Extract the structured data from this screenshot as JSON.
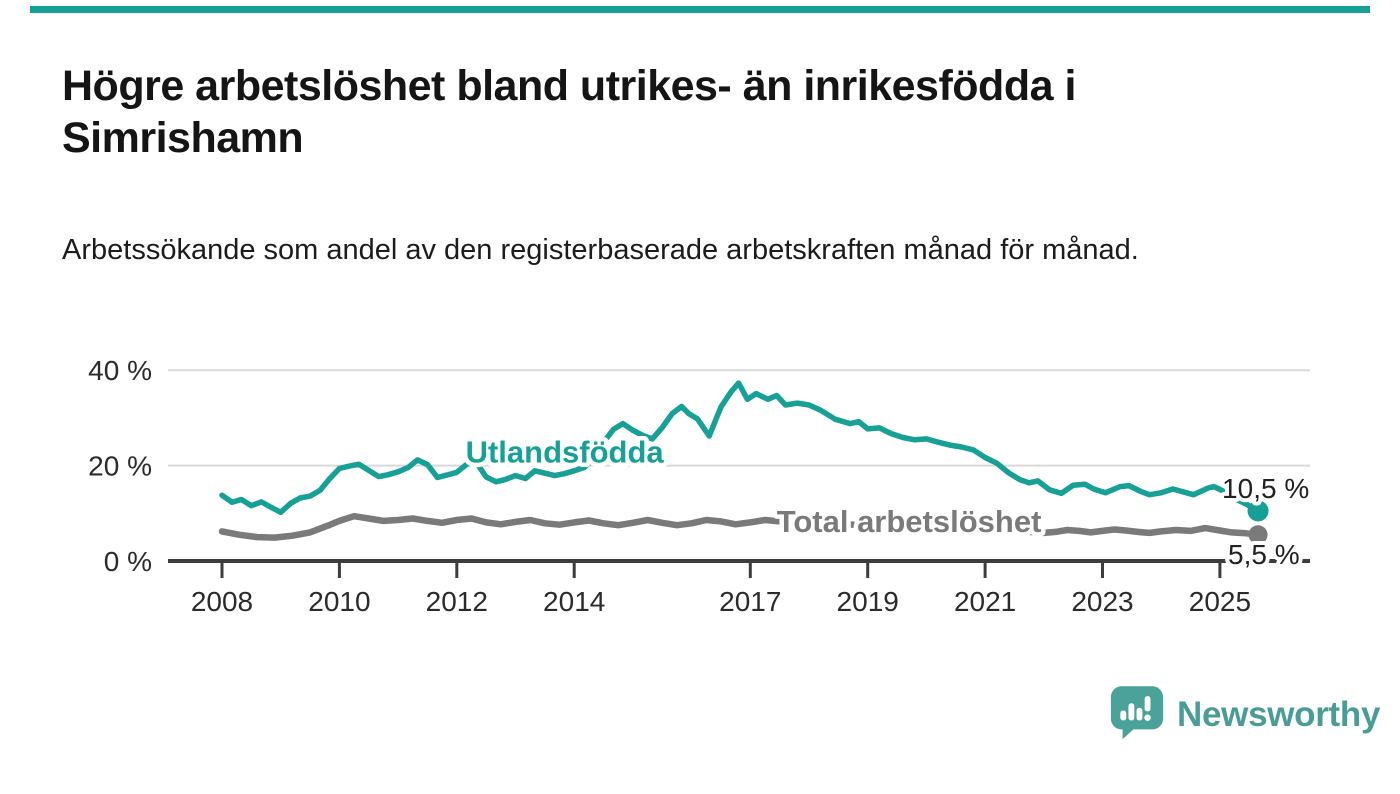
{
  "page": {
    "accent_color": "#16a096",
    "background_color": "#ffffff"
  },
  "header": {
    "title": "Högre arbetslöshet bland utrikes- än inrikesfödda i Simrishamn",
    "subtitle": "Arbetssökande som andel av den registerbaserade arbetskraften månad för månad."
  },
  "chart_data": {
    "type": "line",
    "title": "Högre arbetslöshet bland utrikes- än inrikesfödda i Simrishamn",
    "xlabel": "",
    "ylabel": "",
    "unit": "%",
    "ylim": [
      0,
      44
    ],
    "xlim": [
      2007.5,
      2026
    ],
    "grid": "horizontal",
    "legend_position": "inline-labels",
    "colors": {
      "grid": "#d9d9d9",
      "axis": "#3d3d3d",
      "tick_text": "#2b2b2b",
      "end_label_text": "#222222"
    },
    "yticks": [
      {
        "value": 0,
        "label": "0 %"
      },
      {
        "value": 20,
        "label": "20 %"
      },
      {
        "value": 40,
        "label": "40 %"
      }
    ],
    "xticks": [
      {
        "value": 2008,
        "label": "2008"
      },
      {
        "value": 2010,
        "label": "2010"
      },
      {
        "value": 2012,
        "label": "2012"
      },
      {
        "value": 2014,
        "label": "2014"
      },
      {
        "value": 2017,
        "label": "2017"
      },
      {
        "value": 2019,
        "label": "2019"
      },
      {
        "value": 2021,
        "label": "2021"
      },
      {
        "value": 2023,
        "label": "2023"
      },
      {
        "value": 2025,
        "label": "2025"
      }
    ],
    "series": [
      {
        "name": "Total arbetslöshet",
        "inline_label": "Total arbetslöshet",
        "label_anchor": [
          2017.45,
          6.1
        ],
        "end_label": "5,5 %",
        "end_value": 5.5,
        "color": "#7a7a7a",
        "line_width": 6.5,
        "points": [
          [
            2008.0,
            6.2
          ],
          [
            2008.3,
            5.5
          ],
          [
            2008.6,
            5.0
          ],
          [
            2008.9,
            4.9
          ],
          [
            2009.2,
            5.3
          ],
          [
            2009.5,
            6.0
          ],
          [
            2009.8,
            7.4
          ],
          [
            2010.0,
            8.4
          ],
          [
            2010.25,
            9.4
          ],
          [
            2010.5,
            8.9
          ],
          [
            2010.75,
            8.4
          ],
          [
            2011.0,
            8.6
          ],
          [
            2011.25,
            8.9
          ],
          [
            2011.5,
            8.4
          ],
          [
            2011.75,
            8.0
          ],
          [
            2012.0,
            8.6
          ],
          [
            2012.25,
            8.9
          ],
          [
            2012.5,
            8.1
          ],
          [
            2012.75,
            7.7
          ],
          [
            2013.0,
            8.2
          ],
          [
            2013.25,
            8.6
          ],
          [
            2013.5,
            7.9
          ],
          [
            2013.75,
            7.6
          ],
          [
            2014.0,
            8.1
          ],
          [
            2014.25,
            8.5
          ],
          [
            2014.5,
            7.9
          ],
          [
            2014.75,
            7.5
          ],
          [
            2015.0,
            8.0
          ],
          [
            2015.25,
            8.6
          ],
          [
            2015.5,
            8.0
          ],
          [
            2015.75,
            7.5
          ],
          [
            2016.0,
            7.9
          ],
          [
            2016.25,
            8.6
          ],
          [
            2016.5,
            8.3
          ],
          [
            2016.75,
            7.7
          ],
          [
            2017.0,
            8.1
          ],
          [
            2017.25,
            8.6
          ],
          [
            2017.5,
            8.3
          ],
          [
            2017.75,
            7.9
          ],
          [
            2018.0,
            8.1
          ],
          [
            2018.25,
            8.4
          ],
          [
            2018.5,
            7.9
          ],
          [
            2018.75,
            7.6
          ],
          [
            2019.0,
            7.8
          ],
          [
            2019.25,
            8.0
          ],
          [
            2019.5,
            7.6
          ],
          [
            2019.75,
            7.3
          ],
          [
            2020.0,
            7.5
          ],
          [
            2020.25,
            7.8
          ],
          [
            2020.5,
            7.6
          ],
          [
            2020.75,
            7.3
          ],
          [
            2021.0,
            7.1
          ],
          [
            2021.25,
            6.8
          ],
          [
            2021.5,
            6.4
          ],
          [
            2021.75,
            6.1
          ],
          [
            2022.0,
            5.9
          ],
          [
            2022.2,
            6.1
          ],
          [
            2022.4,
            6.5
          ],
          [
            2022.6,
            6.3
          ],
          [
            2022.8,
            6.0
          ],
          [
            2023.0,
            6.3
          ],
          [
            2023.2,
            6.6
          ],
          [
            2023.4,
            6.4
          ],
          [
            2023.6,
            6.1
          ],
          [
            2023.8,
            5.9
          ],
          [
            2024.0,
            6.2
          ],
          [
            2024.25,
            6.5
          ],
          [
            2024.5,
            6.3
          ],
          [
            2024.75,
            6.9
          ],
          [
            2025.0,
            6.4
          ],
          [
            2025.2,
            6.0
          ],
          [
            2025.45,
            5.8
          ],
          [
            2025.65,
            5.5
          ]
        ]
      },
      {
        "name": "Utlandsfödda",
        "inline_label": "Utlandsfödda",
        "label_anchor": [
          2012.15,
          20.6
        ],
        "end_label": "10,5 %",
        "end_value": 10.5,
        "color": "#16a096",
        "line_width": 5.5,
        "points": [
          [
            2008.0,
            13.8
          ],
          [
            2008.17,
            12.3
          ],
          [
            2008.33,
            12.9
          ],
          [
            2008.5,
            11.6
          ],
          [
            2008.67,
            12.4
          ],
          [
            2008.83,
            11.3
          ],
          [
            2009.0,
            10.2
          ],
          [
            2009.17,
            12.1
          ],
          [
            2009.33,
            13.2
          ],
          [
            2009.5,
            13.6
          ],
          [
            2009.67,
            14.8
          ],
          [
            2009.83,
            17.2
          ],
          [
            2010.0,
            19.4
          ],
          [
            2010.17,
            19.9
          ],
          [
            2010.33,
            20.3
          ],
          [
            2010.5,
            19.0
          ],
          [
            2010.67,
            17.7
          ],
          [
            2010.83,
            18.1
          ],
          [
            2011.0,
            18.7
          ],
          [
            2011.17,
            19.6
          ],
          [
            2011.33,
            21.2
          ],
          [
            2011.5,
            20.2
          ],
          [
            2011.67,
            17.5
          ],
          [
            2011.83,
            18.0
          ],
          [
            2012.0,
            18.6
          ],
          [
            2012.17,
            20.3
          ],
          [
            2012.33,
            20.7
          ],
          [
            2012.5,
            17.6
          ],
          [
            2012.67,
            16.6
          ],
          [
            2012.83,
            17.1
          ],
          [
            2013.0,
            17.9
          ],
          [
            2013.17,
            17.3
          ],
          [
            2013.33,
            18.9
          ],
          [
            2013.5,
            18.4
          ],
          [
            2013.67,
            17.9
          ],
          [
            2013.83,
            18.3
          ],
          [
            2014.0,
            18.9
          ],
          [
            2014.17,
            19.6
          ],
          [
            2014.33,
            21.5
          ],
          [
            2014.5,
            24.9
          ],
          [
            2014.67,
            27.6
          ],
          [
            2014.83,
            28.8
          ],
          [
            2015.0,
            27.4
          ],
          [
            2015.17,
            26.3
          ],
          [
            2015.33,
            25.6
          ],
          [
            2015.5,
            28.0
          ],
          [
            2015.67,
            30.9
          ],
          [
            2015.83,
            32.4
          ],
          [
            2015.95,
            30.9
          ],
          [
            2016.1,
            29.8
          ],
          [
            2016.3,
            26.2
          ],
          [
            2016.5,
            32.3
          ],
          [
            2016.67,
            35.4
          ],
          [
            2016.8,
            37.3
          ],
          [
            2016.95,
            33.9
          ],
          [
            2017.1,
            35.1
          ],
          [
            2017.3,
            33.9
          ],
          [
            2017.45,
            34.7
          ],
          [
            2017.6,
            32.7
          ],
          [
            2017.8,
            33.1
          ],
          [
            2018.0,
            32.7
          ],
          [
            2018.2,
            31.6
          ],
          [
            2018.45,
            29.7
          ],
          [
            2018.7,
            28.8
          ],
          [
            2018.85,
            29.2
          ],
          [
            2019.0,
            27.7
          ],
          [
            2019.2,
            27.9
          ],
          [
            2019.4,
            26.7
          ],
          [
            2019.6,
            25.9
          ],
          [
            2019.8,
            25.4
          ],
          [
            2020.0,
            25.6
          ],
          [
            2020.2,
            24.9
          ],
          [
            2020.4,
            24.3
          ],
          [
            2020.6,
            23.9
          ],
          [
            2020.8,
            23.3
          ],
          [
            2021.0,
            21.7
          ],
          [
            2021.2,
            20.5
          ],
          [
            2021.4,
            18.5
          ],
          [
            2021.6,
            17.0
          ],
          [
            2021.75,
            16.4
          ],
          [
            2021.9,
            16.8
          ],
          [
            2022.1,
            14.9
          ],
          [
            2022.3,
            14.2
          ],
          [
            2022.5,
            15.9
          ],
          [
            2022.7,
            16.1
          ],
          [
            2022.85,
            15.1
          ],
          [
            2023.05,
            14.3
          ],
          [
            2023.3,
            15.6
          ],
          [
            2023.45,
            15.8
          ],
          [
            2023.65,
            14.6
          ],
          [
            2023.8,
            13.9
          ],
          [
            2024.0,
            14.3
          ],
          [
            2024.2,
            15.1
          ],
          [
            2024.4,
            14.4
          ],
          [
            2024.55,
            13.9
          ],
          [
            2024.8,
            15.3
          ],
          [
            2024.9,
            15.6
          ],
          [
            2025.05,
            14.7
          ],
          [
            2025.25,
            13.1
          ],
          [
            2025.45,
            11.9
          ],
          [
            2025.65,
            10.5
          ]
        ]
      }
    ]
  },
  "footer": {
    "brand": "Newsworthy",
    "logo_color": "#4aa29b"
  }
}
